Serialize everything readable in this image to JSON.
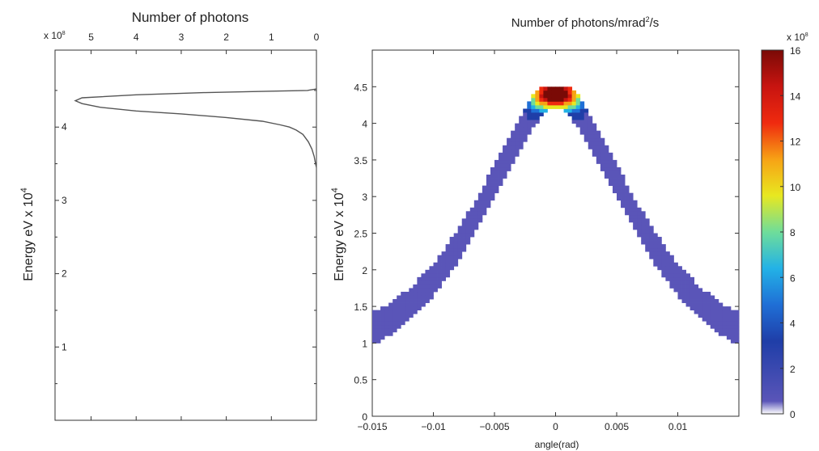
{
  "chart_data": [
    {
      "type": "line",
      "title": "Number of photons",
      "ylabel": "Energy eV x 10",
      "ylabel_exponent": "4",
      "x_multiplier": "x 10",
      "x_multiplier_exponent": "8",
      "x_reversed": true,
      "xlim": [
        5.8,
        0
      ],
      "ylim": [
        0,
        5.05
      ],
      "x_ticks": [
        5,
        4,
        3,
        2,
        1,
        0
      ],
      "y_ticks": [
        1,
        2,
        3,
        4
      ],
      "series": [
        {
          "x": [
            0,
            0.02,
            0.05,
            0.1,
            0.18,
            0.3,
            0.45,
            0.6,
            0.8,
            1.2,
            2.0,
            3.0,
            4.0,
            4.8,
            5.2,
            5.35,
            5.2,
            4.0,
            2.5,
            1.0,
            0.2,
            0
          ],
          "y": [
            3.45,
            3.5,
            3.6,
            3.7,
            3.8,
            3.9,
            3.96,
            4.0,
            4.03,
            4.08,
            4.13,
            4.18,
            4.22,
            4.27,
            4.32,
            4.36,
            4.4,
            4.44,
            4.47,
            4.49,
            4.5,
            4.52
          ]
        }
      ]
    },
    {
      "type": "heatmap",
      "title": "Number of photons/mrad",
      "title_exponent": "2",
      "title_suffix": "/s",
      "xlabel": "angle(rad)",
      "ylabel": "Energy eV x 10",
      "ylabel_exponent": "4",
      "xlim": [
        -0.015,
        0.015
      ],
      "ylim": [
        0,
        5
      ],
      "x_tick_labels": [
        "-0.015",
        "-0.01",
        "-0.005",
        "0",
        "0.005",
        "0.01"
      ],
      "y_tick_labels": [
        "0",
        "0.5",
        "1",
        "1.5",
        "2",
        "2.5",
        "3",
        "3.5",
        "4",
        "4.5"
      ],
      "distribution": {
        "angle_at_peak": 0,
        "peak_energy": 4.45,
        "min_energy_shown": 0.9,
        "band_halfwidth_energy": 0.22,
        "hot_spot": {
          "angle": 0,
          "energy": 4.4,
          "value": 16
        }
      },
      "colorbar": {
        "min": 0,
        "max": 16,
        "ticks": [
          0,
          2,
          4,
          6,
          8,
          10,
          12,
          14,
          16
        ],
        "multiplier": "x 10",
        "multiplier_exponent": "8",
        "colors": [
          "#ffffff",
          "#5a55b8",
          "#1f3ea8",
          "#1f6fd6",
          "#23b2e6",
          "#6fdd9a",
          "#e8e820",
          "#f7a215",
          "#ef2a0f",
          "#c81410",
          "#7a0a06"
        ]
      }
    }
  ]
}
